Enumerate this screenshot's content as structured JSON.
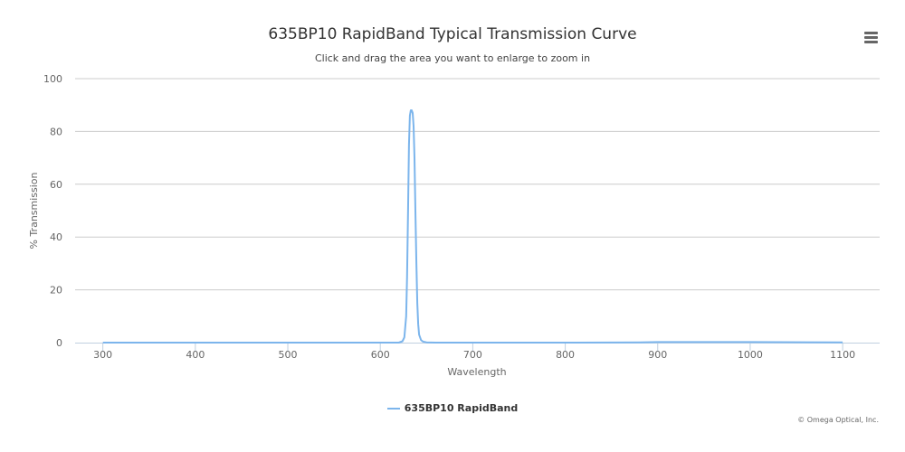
{
  "chart_data": {
    "type": "line",
    "title": "635BP10 RapidBand Typical Transmission Curve",
    "subtitle": "Click and drag the area you want to enlarge to zoom in",
    "xlabel": "Wavelength",
    "ylabel": "% Transmission",
    "xlim": [
      270,
      1140
    ],
    "ylim": [
      0,
      100
    ],
    "x_ticks": [
      300,
      400,
      500,
      600,
      700,
      800,
      900,
      1000,
      1100
    ],
    "y_ticks": [
      0,
      20,
      40,
      60,
      80,
      100
    ],
    "grid": true,
    "legend_position": "bottom-center",
    "series": [
      {
        "name": "635BP10 RapidBand",
        "color": "#7cb5ec",
        "x": [
          300,
          400,
          500,
          600,
          620,
          624,
          626,
          628,
          629,
          630,
          631,
          632,
          633,
          634,
          635,
          636,
          637,
          638,
          639,
          640,
          641,
          642,
          644,
          646,
          650,
          660,
          700,
          800,
          880,
          900,
          1000,
          1100
        ],
        "y": [
          0,
          0,
          0,
          0,
          0,
          0.5,
          2,
          10,
          25,
          50,
          75,
          86,
          88,
          88,
          87,
          82,
          70,
          50,
          30,
          15,
          7,
          3,
          1,
          0.4,
          0.1,
          0,
          0,
          0,
          0.1,
          0.2,
          0.2,
          0.1
        ]
      }
    ]
  },
  "menu": {
    "icon": "hamburger-menu-icon"
  },
  "credits": "© Omega Optical, Inc."
}
